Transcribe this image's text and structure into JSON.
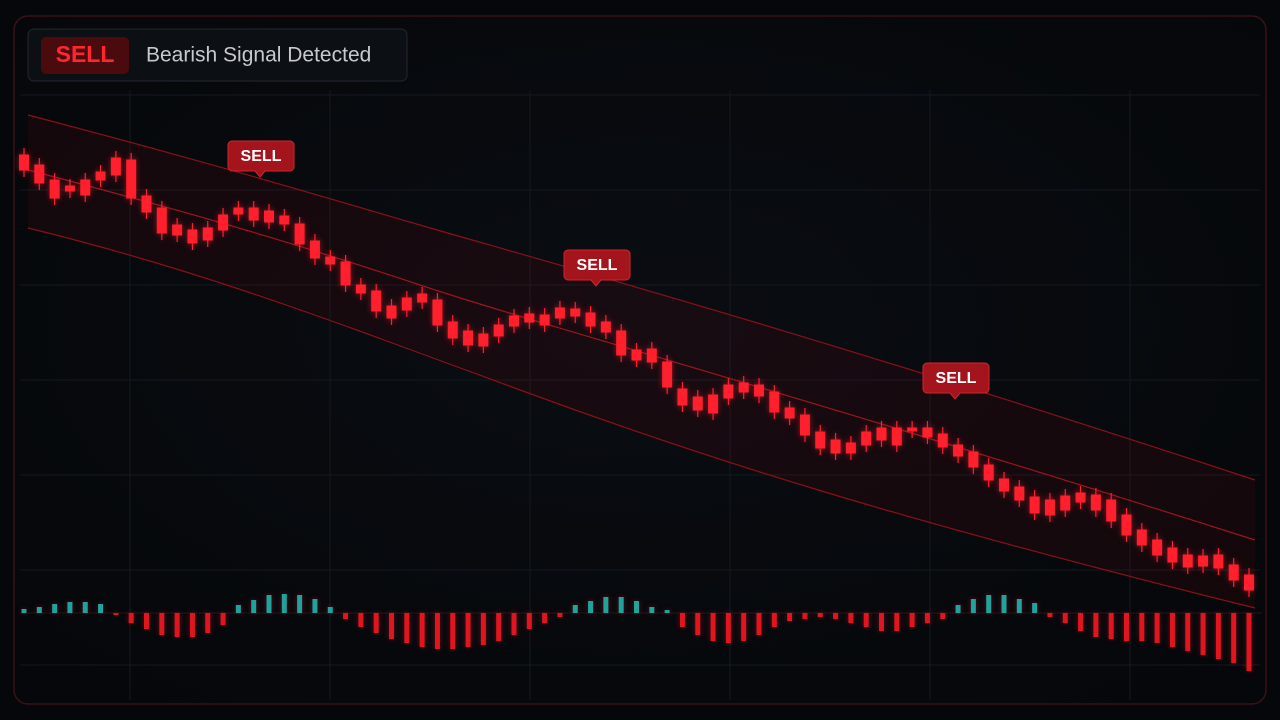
{
  "header": {
    "badge": "SELL",
    "text": "Bearish Signal Detected"
  },
  "chart_data": [
    {
      "type": "candlestick",
      "color": "#ff1f2d",
      "ylim": [
        0,
        720
      ],
      "annotations": [
        "SELL",
        "SELL",
        "SELL"
      ],
      "open": [
        565,
        555,
        540,
        534,
        540,
        548,
        562,
        560,
        524,
        512,
        495,
        490,
        492,
        505,
        512,
        512,
        509,
        504,
        496,
        479,
        463,
        458,
        435,
        429,
        414,
        422,
        426,
        420,
        398,
        389,
        386,
        395,
        404,
        406,
        405,
        412,
        411,
        407,
        398,
        389,
        370,
        371,
        358,
        331,
        323,
        325,
        335,
        337,
        335,
        328,
        312,
        305,
        288,
        280,
        277,
        288,
        292,
        292,
        292,
        292,
        286,
        275,
        268,
        255,
        241,
        233,
        223,
        220,
        224,
        227,
        225,
        220,
        205,
        190,
        180,
        172,
        165,
        164,
        165,
        155,
        145
      ],
      "high": [
        572,
        562,
        547,
        541,
        547,
        555,
        569,
        567,
        531,
        519,
        502,
        497,
        499,
        512,
        519,
        519,
        516,
        511,
        503,
        486,
        470,
        465,
        442,
        436,
        421,
        429,
        433,
        427,
        405,
        396,
        393,
        402,
        411,
        413,
        412,
        419,
        418,
        414,
        405,
        396,
        377,
        378,
        365,
        338,
        330,
        332,
        342,
        344,
        342,
        335,
        319,
        312,
        295,
        287,
        284,
        295,
        299,
        299,
        299,
        299,
        293,
        282,
        275,
        262,
        248,
        240,
        230,
        227,
        231,
        234,
        232,
        227,
        212,
        197,
        187,
        179,
        172,
        171,
        172,
        162,
        152
      ],
      "low": [
        543,
        530,
        515,
        522,
        518,
        533,
        538,
        515,
        501,
        480,
        478,
        470,
        473,
        483,
        499,
        493,
        491,
        489,
        469,
        455,
        449,
        428,
        420,
        402,
        395,
        403,
        411,
        388,
        375,
        368,
        367,
        377,
        387,
        391,
        388,
        395,
        397,
        387,
        381,
        358,
        353,
        351,
        326,
        308,
        303,
        300,
        315,
        321,
        317,
        301,
        295,
        278,
        265,
        260,
        260,
        268,
        273,
        268,
        282,
        276,
        266,
        257,
        246,
        233,
        222,
        213,
        200,
        198,
        203,
        211,
        203,
        192,
        178,
        168,
        158,
        151,
        146,
        147,
        145,
        133,
        123
      ],
      "close": [
        550,
        537,
        522,
        529,
        525,
        540,
        545,
        522,
        508,
        487,
        485,
        477,
        480,
        490,
        506,
        500,
        498,
        496,
        476,
        462,
        456,
        435,
        427,
        409,
        402,
        410,
        418,
        395,
        382,
        375,
        374,
        384,
        394,
        398,
        395,
        402,
        404,
        394,
        388,
        365,
        360,
        358,
        333,
        315,
        310,
        307,
        322,
        328,
        324,
        308,
        302,
        285,
        272,
        267,
        267,
        275,
        280,
        275,
        289,
        283,
        273,
        264,
        253,
        240,
        229,
        220,
        207,
        205,
        210,
        218,
        210,
        199,
        185,
        175,
        165,
        158,
        153,
        154,
        152,
        140,
        130
      ]
    },
    {
      "type": "bar",
      "positive_color": "#1fa39c",
      "negative_color": "#e0151f",
      "ylim": [
        -60,
        25
      ],
      "values": [
        4,
        6,
        9,
        11,
        11,
        9,
        -2,
        -10,
        -16,
        -22,
        -24,
        -24,
        -20,
        -12,
        8,
        13,
        18,
        19,
        18,
        14,
        6,
        -6,
        -14,
        -20,
        -26,
        -30,
        -34,
        -36,
        -36,
        -34,
        -32,
        -28,
        -22,
        -16,
        -10,
        -4,
        8,
        12,
        16,
        16,
        12,
        6,
        3,
        -14,
        -22,
        -28,
        -30,
        -28,
        -22,
        -14,
        -8,
        -6,
        -4,
        -6,
        -10,
        -14,
        -18,
        -18,
        -14,
        -10,
        -6,
        8,
        14,
        18,
        18,
        14,
        10,
        -4,
        -10,
        -18,
        -24,
        -26,
        -28,
        -28,
        -30,
        -34,
        -38,
        -42,
        -46,
        -50,
        -58
      ]
    }
  ]
}
